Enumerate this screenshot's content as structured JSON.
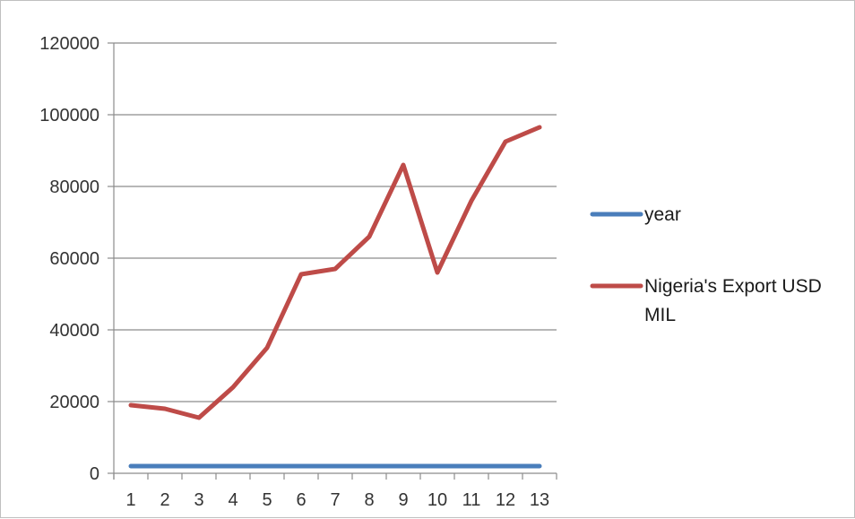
{
  "chart_data": {
    "type": "line",
    "title": "",
    "xlabel": "",
    "ylabel": "",
    "categories": [
      "1",
      "2",
      "3",
      "4",
      "5",
      "6",
      "7",
      "8",
      "9",
      "10",
      "11",
      "12",
      "13"
    ],
    "ylim": [
      0,
      120000
    ],
    "yticks": [
      "0",
      "20000",
      "40000",
      "60000",
      "80000",
      "100000",
      "120000"
    ],
    "grid": true,
    "legend_position": "right",
    "series": [
      {
        "name": "year",
        "color": "#4a7ebb",
        "values": [
          2000,
          2000,
          2000,
          2000,
          2000,
          2000,
          2000,
          2000,
          2000,
          2000,
          2000,
          2000,
          2000
        ]
      },
      {
        "name": "Nigeria's Export USD MIL",
        "name_lines": [
          "Nigeria's Export USD",
          "MIL"
        ],
        "color": "#be4b48",
        "values": [
          19000,
          18000,
          15500,
          24000,
          35000,
          55500,
          57000,
          66000,
          86000,
          56000,
          76000,
          92500,
          96500
        ]
      }
    ]
  }
}
